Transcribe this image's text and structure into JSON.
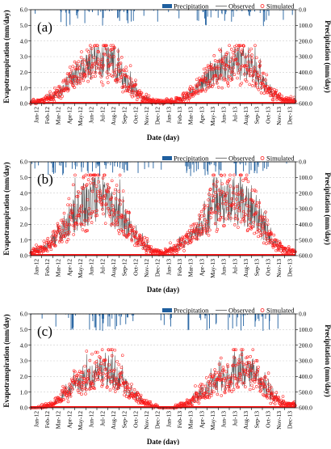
{
  "colors": {
    "precipitation": "#1f5f9f",
    "observed": "#555555",
    "simulated": "#ff1a1a",
    "grid": "#cccccc"
  },
  "legend": {
    "precipitation": "Precipitation",
    "observed": "Observed",
    "simulated": "Simulated"
  },
  "chart_data": [
    {
      "type": "line",
      "panel_label": "(a)",
      "xlabel": "Date (day)",
      "ylabel": "Evapotranspiration (mm/day)",
      "y2label": "Precipitation (mm/day)",
      "ylim": [
        0,
        6
      ],
      "y2lim": [
        600,
        0
      ],
      "yticks": [
        "0.0",
        "1.0",
        "2.0",
        "3.0",
        "4.0",
        "5.0",
        "6.0"
      ],
      "y2ticks": [
        "600.0",
        "500.0",
        "400.0",
        "300.0",
        "200.0",
        "100.0",
        "0.0"
      ],
      "x_tick_labels": [
        "Jan-12",
        "Feb-12",
        "Mar-12",
        "Apr-12",
        "May-12",
        "Jun-12",
        "Jul-12",
        "Aug-12",
        "Sep-12",
        "Oct-12",
        "Nov-12",
        "Dec-12",
        "Jan-13",
        "Feb-13",
        "Mar-13",
        "Apr-13",
        "May-13",
        "Jun-13",
        "Jul-13",
        "Aug-13",
        "Sep-13",
        "Oct-13",
        "Nov-13",
        "Dec-13"
      ],
      "season_envelope_mm_day": [
        0.1,
        0.2,
        0.4,
        1.0,
        1.8,
        2.3,
        2.9,
        2.6,
        1.9,
        1.1,
        0.4,
        0.15,
        0.1,
        0.15,
        0.4,
        0.9,
        1.6,
        2.1,
        2.3,
        2.7,
        2.2,
        1.4,
        0.6,
        0.2
      ],
      "max_et_mm_day": 3.6,
      "precip_max_mm": 110,
      "series": [
        {
          "name": "Precipitation"
        },
        {
          "name": "Observed"
        },
        {
          "name": "Simulated"
        }
      ],
      "seed": 11
    },
    {
      "type": "line",
      "panel_label": "(b)",
      "xlabel": "Date (day)",
      "ylabel": "Evapotranspiration (mm/day)",
      "y2label": "Precipitation (mm/day)",
      "ylim": [
        0,
        6
      ],
      "y2lim": [
        600,
        0
      ],
      "yticks": [
        "0.0",
        "1.0",
        "2.0",
        "3.0",
        "4.0",
        "5.0",
        "6.0"
      ],
      "y2ticks": [
        "600.0",
        "500.0",
        "400.0",
        "300.0",
        "200.0",
        "100.0",
        "0.0"
      ],
      "x_tick_labels": [
        "Jan-12",
        "Feb-12",
        "Mar-12",
        "Apr-12",
        "May-12",
        "Jun-12",
        "Jul-12",
        "Aug-12",
        "Sep-12",
        "Oct-12",
        "Nov-12",
        "Dec-12",
        "Jan-13",
        "Feb-13",
        "Mar-13",
        "Apr-13",
        "May-13",
        "Jun-13",
        "Jul-13",
        "Aug-13",
        "Sep-13",
        "Oct-13",
        "Nov-13",
        "Dec-13"
      ],
      "season_envelope_mm_day": [
        0.2,
        0.4,
        0.9,
        1.8,
        2.7,
        3.4,
        3.8,
        3.5,
        2.6,
        1.6,
        0.8,
        0.3,
        0.2,
        0.4,
        0.9,
        1.6,
        2.5,
        3.2,
        3.6,
        3.5,
        2.8,
        1.8,
        0.9,
        0.3
      ],
      "max_et_mm_day": 5.0,
      "precip_max_mm": 95,
      "series": [
        {
          "name": "Precipitation"
        },
        {
          "name": "Observed"
        },
        {
          "name": "Simulated"
        }
      ],
      "seed": 23
    },
    {
      "type": "line",
      "panel_label": "(c)",
      "xlabel": "Date (day)",
      "ylabel": "Evapotranspiration (mm/day)",
      "y2label": "Precipitation (mm/day)",
      "ylim": [
        0,
        6
      ],
      "y2lim": [
        600,
        0
      ],
      "yticks": [
        "0.0",
        "1.0",
        "2.0",
        "3.0",
        "4.0",
        "5.0",
        "6.0"
      ],
      "y2ticks": [
        "600.0",
        "500.0",
        "400.0",
        "300.0",
        "200.0",
        "100.0",
        "0.0"
      ],
      "x_tick_labels": [
        "Jan-12",
        "Feb-12",
        "Mar-12",
        "Apr-12",
        "May-12",
        "Jun-12",
        "Jul-12",
        "Aug-12",
        "Sep-12",
        "Oct-12",
        "Nov-12",
        "Dec-12",
        "Jan-13",
        "Feb-13",
        "Mar-13",
        "Apr-13",
        "May-13",
        "Jun-13",
        "Jul-13",
        "Aug-13",
        "Sep-13",
        "Oct-13",
        "Nov-13",
        "Dec-13"
      ],
      "season_envelope_mm_day": [
        0.0,
        0.05,
        0.2,
        0.8,
        1.4,
        1.8,
        2.2,
        2.4,
        1.8,
        1.0,
        0.4,
        0.1,
        0.0,
        0.05,
        0.2,
        0.6,
        1.2,
        1.6,
        2.0,
        2.5,
        2.2,
        1.4,
        0.6,
        0.2
      ],
      "max_et_mm_day": 3.6,
      "precip_max_mm": 110,
      "series": [
        {
          "name": "Precipitation"
        },
        {
          "name": "Observed"
        },
        {
          "name": "Simulated"
        }
      ],
      "seed": 37
    }
  ]
}
